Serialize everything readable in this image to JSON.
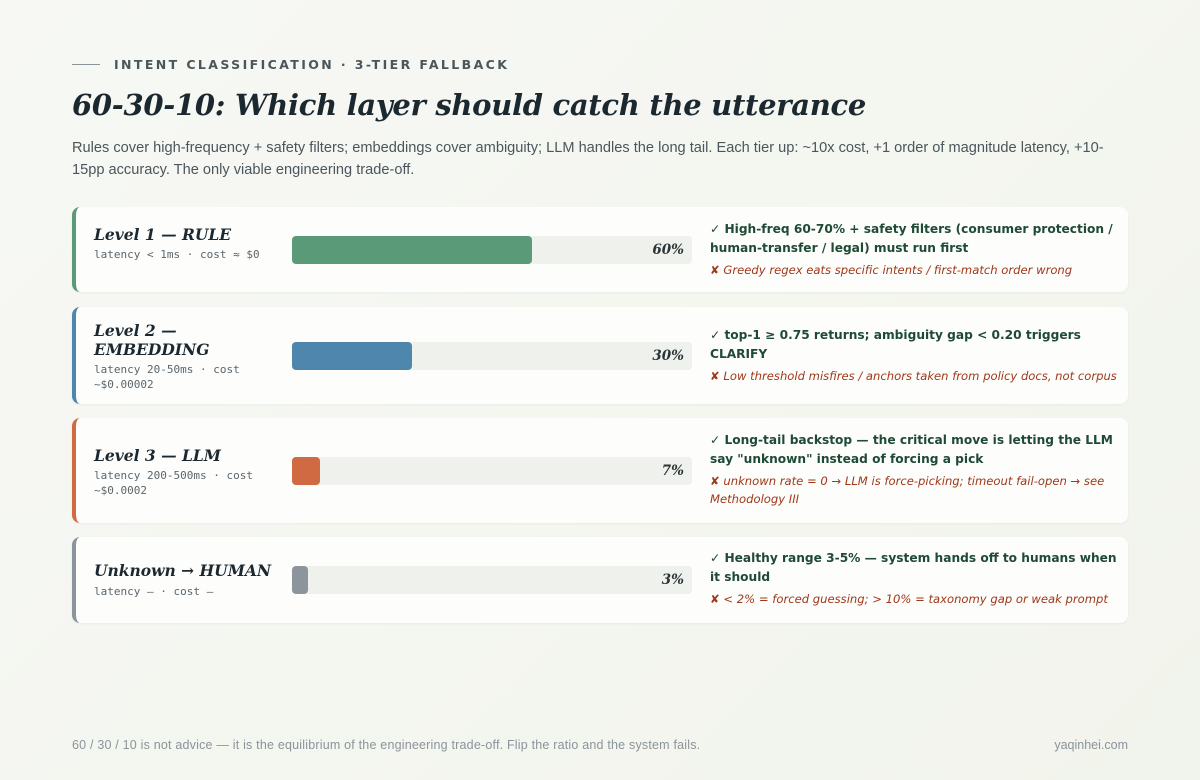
{
  "header": {
    "eyebrow": "INTENT CLASSIFICATION · 3-TIER FALLBACK",
    "title": "60-30-10: Which layer should catch the utterance",
    "subtitle": "Rules cover high-frequency + safety filters; embeddings cover ambiguity; LLM handles the long tail. Each tier up: ~10x cost, +1 order of magnitude latency, +10-15pp accuracy. The only viable engineering trade-off."
  },
  "levels": [
    {
      "name": "Level 1 — RULE",
      "meta": "latency < 1ms · cost ≈ $0",
      "share": 60,
      "pct_label": "60%",
      "color": "#5b9a78",
      "pro": "✓ High-freq 60-70% + safety filters (consumer protection / human-transfer / legal) must run first",
      "con": "✘ Greedy regex eats specific intents / first-match order wrong"
    },
    {
      "name": "Level 2 — EMBEDDING",
      "meta": "latency 20-50ms · cost ~$0.00002",
      "share": 30,
      "pct_label": "30%",
      "color": "#4f86ad",
      "pro": "✓ top-1 ≥ 0.75 returns; ambiguity gap < 0.20 triggers CLARIFY",
      "con": "✘ Low threshold misfires / anchors taken from policy docs, not corpus"
    },
    {
      "name": "Level 3 — LLM",
      "meta": "latency 200-500ms · cost ~$0.0002",
      "share": 7,
      "pct_label": "7%",
      "color": "#d06a42",
      "pro": "✓ Long-tail backstop — the critical move is letting the LLM say \"unknown\" instead of forcing a pick",
      "con": "✘ unknown rate = 0 → LLM is force-picking; timeout fail-open → see Methodology III"
    },
    {
      "name": "Unknown → HUMAN",
      "meta": "latency — · cost —",
      "share": 3,
      "pct_label": "3%",
      "color": "#8d959c",
      "pro": "✓ Healthy range 3-5% — system hands off to humans when it should",
      "con": "✘ < 2% = forced guessing; > 10% = taxonomy gap or weak prompt"
    }
  ],
  "footer": {
    "note": "60 / 30 / 10 is not advice — it is the equilibrium of the engineering trade-off. Flip the ratio and the system fails.",
    "site": "yaqinhei.com"
  }
}
